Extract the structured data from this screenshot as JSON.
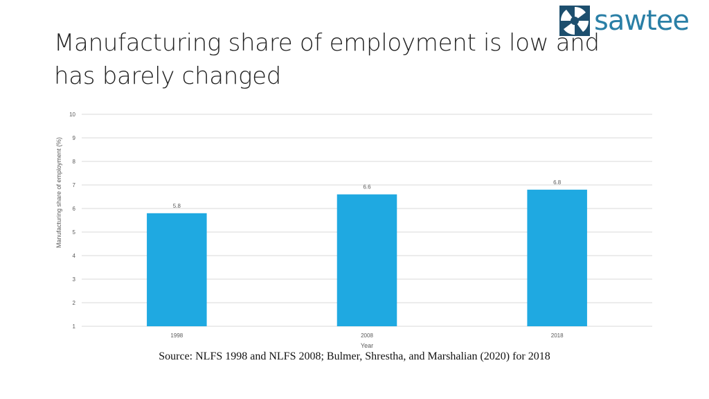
{
  "slide": {
    "title": "Manufacturing share of employment is low and has barely changed",
    "source": "Source: NLFS 1998 and NLFS 2008; Bulmer, Shrestha, and Marshalian (2020) for 2018"
  },
  "logo": {
    "text": "sawtee",
    "icon": "sawtee-logo-icon",
    "colors": {
      "dark": "#1d4f6e",
      "light": "#2a7fa6"
    }
  },
  "chart_data": {
    "type": "bar",
    "title": "",
    "categories": [
      "1998",
      "2008",
      "2018"
    ],
    "values": [
      5.8,
      6.6,
      6.8
    ],
    "data_labels": [
      "5.8",
      "6.6",
      "6.8"
    ],
    "xlabel": "Year",
    "ylabel": "Manufacturing share of employment (%)",
    "ylim": [
      1,
      10
    ],
    "yticks": [
      "1",
      "2",
      "3",
      "4",
      "5",
      "6",
      "7",
      "8",
      "9",
      "10"
    ],
    "grid": true,
    "legend": "none",
    "bar_color": "#1fa9e1",
    "grid_color": "#d9d9d9",
    "label_color": "#595959"
  }
}
